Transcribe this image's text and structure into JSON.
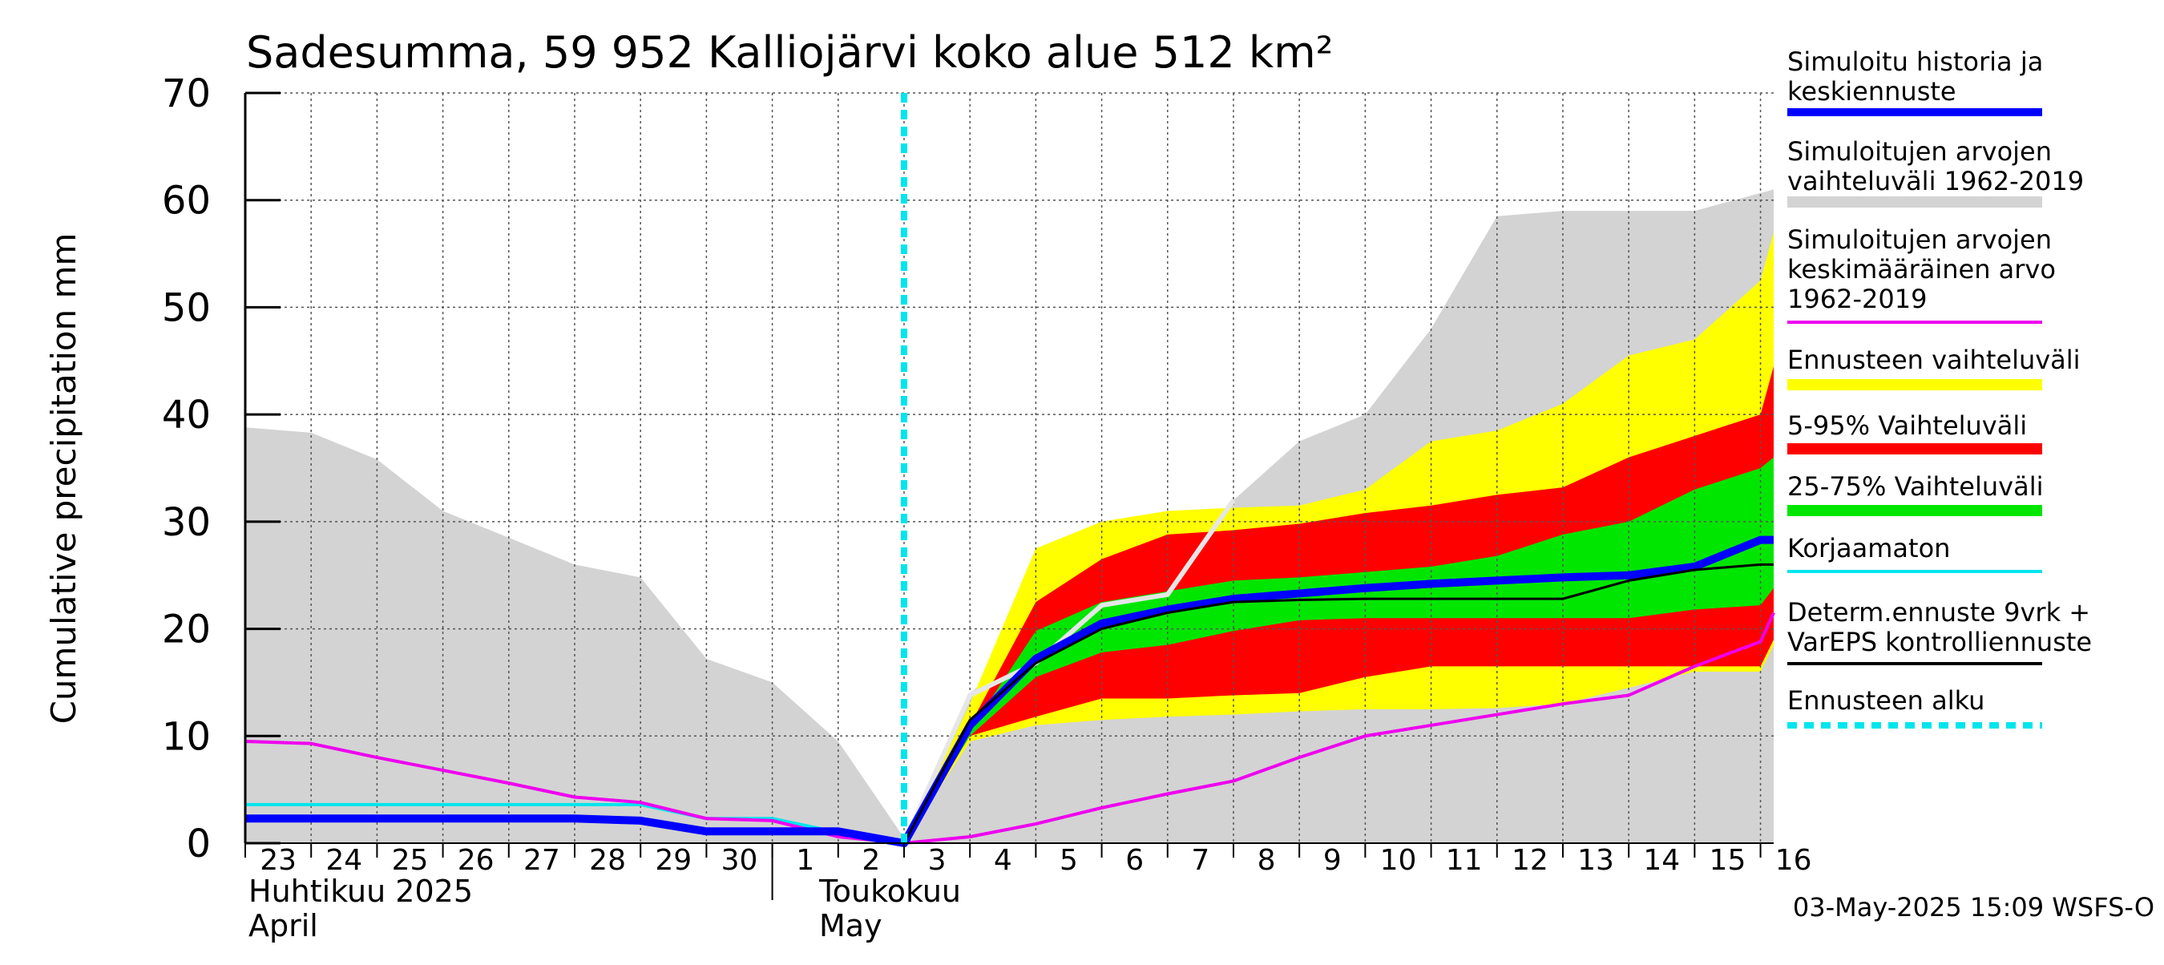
{
  "chart_data": {
    "type": "area",
    "title": "Sadesumma, 59 952 Kalliojärvi koko alue 512 km²",
    "ylabel": "Cumulative precipitation   mm",
    "ylim": [
      0,
      70
    ],
    "yticks": [
      0,
      10,
      20,
      30,
      40,
      50,
      60,
      70
    ],
    "xlim": [
      0,
      23.2
    ],
    "x_day_labels": [
      "23",
      "24",
      "25",
      "26",
      "27",
      "28",
      "29",
      "30",
      "1",
      "2",
      "3",
      "4",
      "5",
      "6",
      "7",
      "8",
      "9",
      "10",
      "11",
      "12",
      "13",
      "14",
      "15",
      "16"
    ],
    "month_labels": {
      "april_fi": "Huhtikuu  2025",
      "april_en": "April",
      "may_fi": "Toukokuu",
      "may_en": "May"
    },
    "forecast_start_x": 10,
    "footer": "03-May-2025 15:09 WSFS-O",
    "colors": {
      "history_band": "#d3d3d3",
      "forecast_range": "#ffff00",
      "p5_95": "#ff0000",
      "p25_75": "#00e600",
      "simulated": "#0000ff",
      "mean": "#ee00ee",
      "uncorrected": "#00e5ee",
      "determ": "#000000",
      "forecast_start": "#00e5ee"
    },
    "legend": [
      {
        "label": "Simuloitu historia ja keskiennuste",
        "lines": [
          "Simuloitu historia ja",
          "keskiennuste"
        ],
        "color": "#0000ff",
        "style": "thick"
      },
      {
        "label": "Simuloitujen arvojen vaihteluväli 1962-2019",
        "lines": [
          "Simuloitujen arvojen",
          "vaihteluväli 1962-2019"
        ],
        "color": "#d3d3d3",
        "style": "band"
      },
      {
        "label": "Simuloitujen arvojen keskimääräinen arvo 1962-2019",
        "lines": [
          "Simuloitujen arvojen",
          "keskimääräinen arvo",
          "   1962-2019"
        ],
        "color": "#ee00ee",
        "style": "thin"
      },
      {
        "label": "Ennusteen vaihteluväli",
        "lines": [
          "Ennusteen vaihteluväli"
        ],
        "color": "#ffff00",
        "style": "band"
      },
      {
        "label": "5-95% Vaihteluväli",
        "lines": [
          "5-95% Vaihteluväli"
        ],
        "color": "#ff0000",
        "style": "band"
      },
      {
        "label": "25-75% Vaihteluväli",
        "lines": [
          "25-75% Vaihteluväli"
        ],
        "color": "#00e600",
        "style": "band"
      },
      {
        "label": "Korjaamaton",
        "lines": [
          "Korjaamaton"
        ],
        "color": "#00e5ee",
        "style": "thin"
      },
      {
        "label": "Determ.ennuste 9vrk + VarEPS kontrolliennuste",
        "lines": [
          "Determ.ennuste 9vrk +",
          "VarEPS kontrolliennuste"
        ],
        "color": "#000000",
        "style": "thin"
      },
      {
        "label": "Ennusteen alku",
        "lines": [
          "Ennusteen alku"
        ],
        "color": "#00e5ee",
        "style": "dashed"
      }
    ],
    "series": {
      "history_band": {
        "x": [
          0,
          1,
          2,
          3,
          4,
          5,
          6,
          7,
          8,
          9,
          10,
          11,
          12,
          13,
          14,
          15,
          16,
          17,
          18,
          19,
          20,
          21,
          22,
          23.2
        ],
        "upper": [
          38.8,
          38.3,
          35.8,
          31.0,
          28.5,
          26.0,
          24.8,
          17.2,
          15.0,
          9.5,
          0.5,
          14.0,
          19.0,
          23.0,
          25.0,
          32.0,
          37.5,
          40.0,
          48.0,
          58.5,
          59.0,
          59.0,
          59.0,
          61.0
        ],
        "lower": [
          0,
          0,
          0,
          0,
          0,
          0,
          0,
          0,
          0,
          0,
          0,
          0,
          0,
          0,
          0,
          0,
          0,
          0,
          0,
          0,
          0,
          0,
          0,
          0
        ]
      },
      "forecast_range": {
        "x": [
          10,
          11,
          12,
          13,
          14,
          15,
          16,
          17,
          18,
          19,
          20,
          21,
          22,
          23,
          23.2
        ],
        "upper": [
          0,
          13.0,
          27.5,
          30.0,
          31.0,
          31.3,
          31.5,
          33.0,
          37.5,
          38.5,
          41.0,
          45.5,
          47.0,
          52.5,
          57.0
        ],
        "lower": [
          0,
          9.5,
          11.0,
          11.5,
          11.8,
          12.0,
          12.3,
          12.5,
          12.5,
          12.6,
          13.0,
          14.5,
          16.0,
          16.0,
          18.5
        ]
      },
      "p5_95": {
        "x": [
          10,
          11,
          12,
          13,
          14,
          15,
          16,
          17,
          18,
          19,
          20,
          21,
          22,
          23,
          23.2
        ],
        "upper": [
          0,
          11.0,
          22.5,
          26.5,
          28.8,
          29.2,
          29.8,
          30.8,
          31.5,
          32.5,
          33.2,
          36.0,
          38.0,
          40.0,
          44.5
        ],
        "lower": [
          0,
          10.0,
          11.8,
          13.5,
          13.5,
          13.8,
          14.0,
          15.5,
          16.5,
          16.5,
          16.5,
          16.5,
          16.5,
          16.5,
          19.0
        ]
      },
      "p25_75": {
        "x": [
          10,
          11,
          12,
          13,
          14,
          15,
          16,
          17,
          18,
          19,
          20,
          21,
          22,
          23,
          23.2
        ],
        "upper": [
          0,
          10.5,
          19.8,
          22.5,
          23.5,
          24.5,
          24.8,
          25.3,
          25.8,
          26.8,
          28.8,
          30.0,
          33.0,
          35.0,
          36.0
        ],
        "lower": [
          0,
          10.0,
          15.5,
          17.8,
          18.5,
          19.8,
          20.8,
          21.0,
          21.0,
          21.0,
          21.0,
          21.0,
          21.8,
          22.2,
          23.8
        ]
      },
      "simulated": {
        "x": [
          0,
          1,
          2,
          3,
          4,
          5,
          6,
          7,
          8,
          9,
          10,
          11,
          12,
          13,
          14,
          15,
          16,
          17,
          18,
          19,
          20,
          21,
          22,
          23,
          23.2
        ],
        "y": [
          2.3,
          2.3,
          2.3,
          2.3,
          2.3,
          2.3,
          2.1,
          1.1,
          1.1,
          1.1,
          0,
          11.0,
          17.2,
          20.5,
          21.8,
          22.8,
          23.3,
          23.8,
          24.2,
          24.5,
          24.8,
          25.0,
          25.8,
          28.3,
          28.3
        ]
      },
      "mean": {
        "x": [
          0,
          1,
          2,
          3,
          4,
          5,
          6,
          7,
          8,
          9,
          10,
          11,
          12,
          13,
          14,
          15,
          16,
          17,
          18,
          19,
          20,
          21,
          22,
          23,
          23.2
        ],
        "y": [
          9.5,
          9.3,
          8.0,
          6.8,
          5.6,
          4.3,
          3.8,
          2.3,
          2.1,
          0.6,
          0,
          0.6,
          1.8,
          3.3,
          4.6,
          5.8,
          8.0,
          10.0,
          11.0,
          12.0,
          13.0,
          13.8,
          16.5,
          18.8,
          21.5
        ]
      },
      "uncorrected": {
        "x": [
          0,
          1,
          2,
          3,
          4,
          5,
          6,
          7,
          8,
          9,
          10
        ],
        "y": [
          3.6,
          3.6,
          3.6,
          3.6,
          3.6,
          3.6,
          3.6,
          2.3,
          2.3,
          1.0,
          0
        ]
      },
      "determ": {
        "x": [
          10,
          11,
          12,
          13,
          14,
          15,
          16,
          17,
          18,
          19,
          20,
          21,
          22,
          23,
          23.2
        ],
        "y": [
          0,
          11.5,
          16.8,
          20.0,
          21.5,
          22.5,
          22.7,
          22.8,
          22.8,
          22.8,
          22.8,
          24.5,
          25.5,
          26.0,
          26.0
        ]
      },
      "white_line": {
        "x": [
          10,
          11,
          12,
          13,
          14,
          15
        ],
        "y": [
          0,
          13.8,
          16.8,
          22.2,
          23.2,
          32.0
        ]
      }
    }
  }
}
